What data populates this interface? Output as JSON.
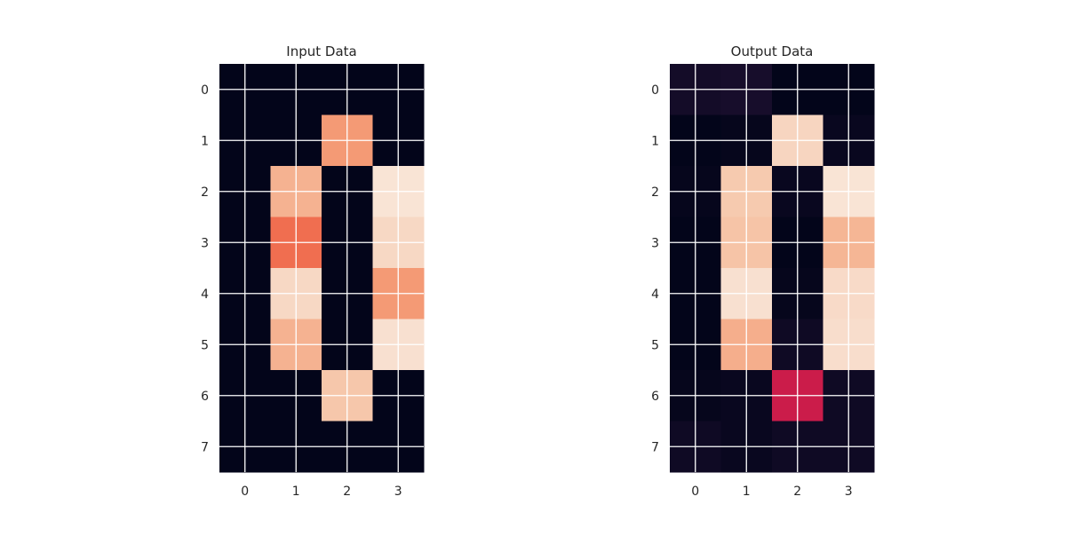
{
  "chart_data": [
    {
      "type": "heatmap",
      "title": "Input Data",
      "xticks": [
        "0",
        "1",
        "2",
        "3"
      ],
      "yticks": [
        "0",
        "1",
        "2",
        "3",
        "4",
        "5",
        "6",
        "7"
      ],
      "values": [
        [
          0.0,
          0.0,
          0.0,
          0.0
        ],
        [
          0.0,
          0.0,
          0.69,
          0.0
        ],
        [
          0.0,
          0.75,
          0.0,
          0.94
        ],
        [
          0.0,
          0.62,
          0.0,
          0.87
        ],
        [
          0.0,
          0.87,
          0.0,
          0.69
        ],
        [
          0.0,
          0.75,
          0.0,
          0.9
        ],
        [
          0.0,
          0.0,
          0.81,
          0.0
        ],
        [
          0.0,
          0.0,
          0.0,
          0.0
        ]
      ],
      "colormap": "rocket",
      "grid": true
    },
    {
      "type": "heatmap",
      "title": "Output Data",
      "xticks": [
        "0",
        "1",
        "2",
        "3"
      ],
      "yticks": [
        "0",
        "1",
        "2",
        "3",
        "4",
        "5",
        "6",
        "7"
      ],
      "values": [
        [
          0.06,
          0.07,
          0.0,
          0.0
        ],
        [
          0.0,
          0.01,
          0.86,
          0.02
        ],
        [
          0.01,
          0.82,
          0.02,
          0.94
        ],
        [
          0.0,
          0.8,
          0.0,
          0.76
        ],
        [
          0.0,
          0.9,
          0.01,
          0.88
        ],
        [
          0.0,
          0.74,
          0.04,
          0.89
        ],
        [
          0.01,
          0.02,
          0.5,
          0.04
        ],
        [
          0.04,
          0.02,
          0.04,
          0.04
        ]
      ],
      "colormap": "rocket",
      "grid": true
    }
  ]
}
